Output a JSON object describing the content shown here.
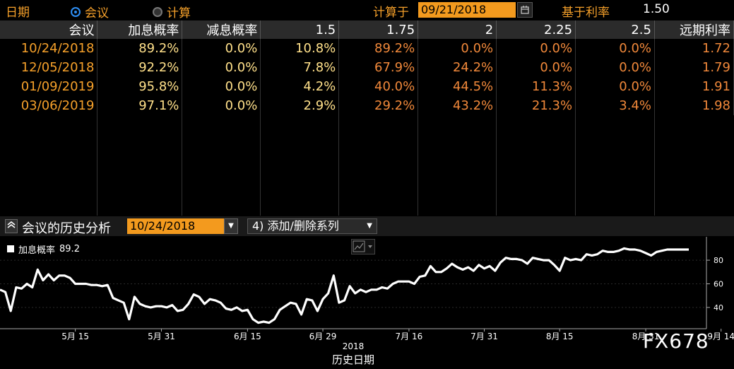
{
  "topbar": {
    "label_date": "日期",
    "radio_meeting": "会议",
    "radio_calc": "计算",
    "label_calc_at": "计算于",
    "calc_date": "09/21/2018",
    "label_base_rate": "基于利率",
    "base_rate": "1.50"
  },
  "table": {
    "headers": [
      "会议",
      "加息概率",
      "减息概率",
      "1.5",
      "1.75",
      "2",
      "2.25",
      "2.5",
      "远期利率"
    ],
    "rows": [
      [
        "10/24/2018",
        "89.2%",
        "0.0%",
        "10.8%",
        "89.2%",
        "0.0%",
        "0.0%",
        "0.0%",
        "1.72"
      ],
      [
        "12/05/2018",
        "92.2%",
        "0.0%",
        "7.8%",
        "67.9%",
        "24.2%",
        "0.0%",
        "0.0%",
        "1.79"
      ],
      [
        "01/09/2019",
        "95.8%",
        "0.0%",
        "4.2%",
        "40.0%",
        "44.5%",
        "11.3%",
        "0.0%",
        "1.91"
      ],
      [
        "03/06/2019",
        "97.1%",
        "0.0%",
        "2.9%",
        "29.2%",
        "43.2%",
        "21.3%",
        "3.4%",
        "1.98"
      ]
    ]
  },
  "history_bar": {
    "title": "会议的历史分析",
    "meeting_date": "10/24/2018",
    "menu_label": "4) 添加/删除系列"
  },
  "legend": {
    "series_label": "加息概率",
    "series_value": "89.2"
  },
  "watermark": "FX678",
  "chart_data": {
    "type": "line",
    "title": "",
    "xlabel": "历史日期",
    "xlabel_year": "2018",
    "ylabel": "",
    "ylim": [
      22,
      95
    ],
    "yticks": [
      40,
      60,
      80
    ],
    "xtick_labels": [
      "5月 15",
      "5月 31",
      "6月 15",
      "6月 29",
      "7月 16",
      "7月 31",
      "8月 15",
      "8月 31",
      "9月 14"
    ],
    "xtick_index": [
      14,
      30,
      46,
      60,
      76,
      90,
      104,
      120,
      134
    ],
    "series": [
      {
        "name": "加息概率",
        "color": "#ffffff",
        "values": [
          55,
          53,
          37,
          57,
          56,
          60,
          57,
          72,
          63,
          68,
          63,
          67,
          67,
          65,
          60,
          60,
          60,
          59,
          59,
          58,
          59,
          48,
          46,
          44,
          30,
          49,
          43,
          41,
          40,
          41,
          41,
          40,
          42,
          37,
          38,
          43,
          51,
          49,
          43,
          47,
          46,
          44,
          39,
          38,
          40,
          37,
          38,
          30,
          27,
          28,
          27,
          30,
          38,
          41,
          44,
          43,
          34,
          47,
          46,
          37,
          47,
          52,
          67,
          44,
          46,
          58,
          52,
          55,
          53,
          55,
          55,
          57,
          56,
          60,
          62,
          62,
          62,
          60,
          66,
          67,
          75,
          70,
          70,
          73,
          77,
          74,
          72,
          74,
          71,
          76,
          73,
          75,
          71,
          78,
          82,
          81,
          81,
          80,
          77,
          82,
          81,
          80,
          80,
          76,
          71,
          82,
          80,
          81,
          80,
          85,
          84,
          85,
          88,
          87,
          87,
          88,
          90,
          89,
          89,
          88,
          86,
          84,
          87,
          88,
          89,
          89,
          89,
          89,
          89
        ]
      }
    ]
  }
}
